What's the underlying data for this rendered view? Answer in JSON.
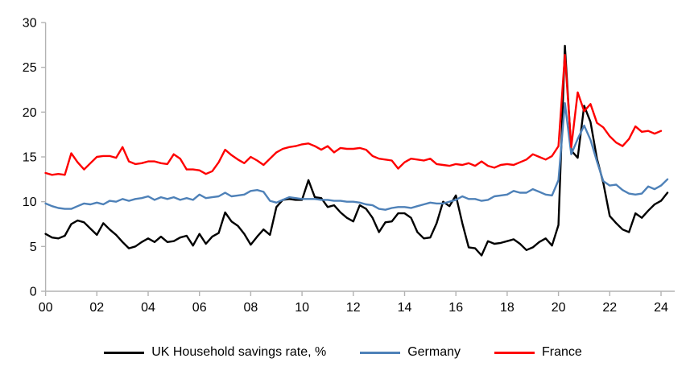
{
  "chart_data": {
    "type": "line",
    "title": "",
    "xlabel": "",
    "ylabel": "",
    "x_unit": "year (quarterly observations, 2000Q1 - 2024Q2)",
    "ylim": [
      0,
      30
    ],
    "y_ticks": [
      0,
      5,
      10,
      15,
      20,
      25,
      30
    ],
    "x_tick_labels": [
      "00",
      "02",
      "04",
      "06",
      "08",
      "10",
      "12",
      "14",
      "16",
      "18",
      "20",
      "22",
      "24"
    ],
    "grid": false,
    "legend_position": "bottom",
    "axis_color": "#b3b3b3",
    "tick_label_color": "#000000",
    "series": [
      {
        "name": "UK Household savings rate, %",
        "color": "#000000",
        "start": "2000Q1",
        "frequency": "quarterly",
        "values": [
          6.4,
          6.0,
          5.9,
          6.2,
          7.5,
          7.9,
          7.7,
          7.0,
          6.3,
          7.6,
          6.9,
          6.3,
          5.5,
          4.8,
          5.0,
          5.5,
          5.9,
          5.5,
          6.1,
          5.5,
          5.6,
          6.0,
          6.2,
          5.1,
          6.4,
          5.3,
          6.1,
          6.5,
          8.8,
          7.8,
          7.3,
          6.4,
          5.2,
          6.1,
          6.9,
          6.3,
          9.4,
          10.2,
          10.3,
          10.2,
          10.2,
          12.4,
          10.5,
          10.4,
          9.4,
          9.6,
          8.8,
          8.2,
          7.8,
          9.6,
          9.2,
          8.2,
          6.6,
          7.7,
          7.8,
          8.7,
          8.7,
          8.2,
          6.6,
          5.9,
          6.0,
          7.6,
          10.0,
          9.5,
          10.7,
          7.6,
          4.9,
          4.8,
          4.0,
          5.6,
          5.3,
          5.4,
          5.6,
          5.8,
          5.3,
          4.6,
          4.9,
          5.5,
          5.9,
          5.1,
          7.4,
          27.4,
          15.7,
          14.9,
          20.7,
          18.9,
          14.8,
          12.1,
          8.4,
          7.6,
          6.9,
          6.6,
          8.7,
          8.2,
          9.0,
          9.7,
          10.1,
          11.0
        ]
      },
      {
        "name": "Germany",
        "color": "#4e81b8",
        "start": "2000Q1",
        "frequency": "quarterly",
        "values": [
          9.8,
          9.5,
          9.3,
          9.2,
          9.2,
          9.5,
          9.8,
          9.7,
          9.9,
          9.7,
          10.1,
          10.0,
          10.3,
          10.1,
          10.3,
          10.4,
          10.6,
          10.2,
          10.5,
          10.3,
          10.5,
          10.2,
          10.4,
          10.2,
          10.8,
          10.4,
          10.5,
          10.6,
          11.0,
          10.6,
          10.7,
          10.8,
          11.2,
          11.3,
          11.1,
          10.1,
          9.9,
          10.2,
          10.5,
          10.4,
          10.3,
          10.3,
          10.3,
          10.2,
          10.2,
          10.1,
          10.1,
          10.0,
          10.0,
          9.9,
          9.7,
          9.6,
          9.2,
          9.1,
          9.3,
          9.4,
          9.4,
          9.3,
          9.5,
          9.7,
          9.9,
          9.8,
          9.8,
          10.0,
          10.2,
          10.6,
          10.3,
          10.3,
          10.1,
          10.2,
          10.6,
          10.7,
          10.8,
          11.2,
          11.0,
          11.0,
          11.4,
          11.1,
          10.8,
          10.7,
          12.4,
          21.0,
          15.3,
          17.0,
          18.5,
          16.9,
          14.5,
          12.3,
          11.8,
          11.9,
          11.3,
          10.9,
          10.8,
          10.9,
          11.7,
          11.4,
          11.8,
          12.5
        ]
      },
      {
        "name": "France",
        "color": "#fe0000",
        "start": "2000Q1",
        "frequency": "quarterly",
        "values": [
          13.2,
          13.0,
          13.1,
          13.0,
          15.4,
          14.4,
          13.6,
          14.3,
          15.0,
          15.1,
          15.1,
          14.9,
          16.1,
          14.5,
          14.2,
          14.3,
          14.5,
          14.5,
          14.3,
          14.2,
          15.3,
          14.8,
          13.6,
          13.6,
          13.5,
          13.1,
          13.4,
          14.4,
          15.8,
          15.2,
          14.7,
          14.3,
          15.0,
          14.6,
          14.1,
          14.8,
          15.5,
          15.9,
          16.1,
          16.2,
          16.4,
          16.5,
          16.2,
          15.8,
          16.2,
          15.5,
          16.0,
          15.9,
          15.9,
          16.0,
          15.8,
          15.1,
          14.8,
          14.7,
          14.6,
          13.7,
          14.4,
          14.8,
          14.7,
          14.6,
          14.8,
          14.2,
          14.1,
          14.0,
          14.2,
          14.1,
          14.3,
          14.0,
          14.5,
          14.0,
          13.8,
          14.1,
          14.2,
          14.1,
          14.4,
          14.7,
          15.3,
          15.0,
          14.7,
          15.1,
          16.2,
          26.4,
          16.1,
          22.2,
          20.1,
          20.9,
          18.8,
          18.3,
          17.3,
          16.6,
          16.2,
          17.0,
          18.4,
          17.8,
          17.9,
          17.6,
          17.9
        ]
      }
    ]
  }
}
